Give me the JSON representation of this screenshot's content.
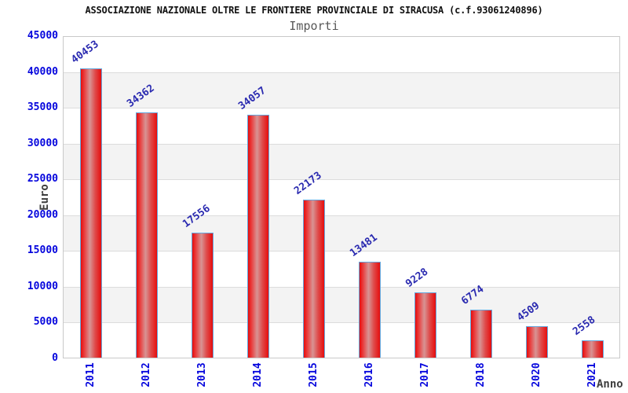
{
  "header": {
    "title": "ASSOCIAZIONE NAZIONALE OLTRE LE FRONTIERE PROVINCIALE DI SIRACUSA (c.f.93061240896)",
    "subtitle": "Importi"
  },
  "chart_data": {
    "type": "bar",
    "title": "ASSOCIAZIONE NAZIONALE OLTRE LE FRONTIERE PROVINCIALE DI SIRACUSA (c.f.93061240896)",
    "subtitle": "Importi",
    "xlabel": "Anno",
    "ylabel": "Euro",
    "categories": [
      "2011",
      "2012",
      "2013",
      "2014",
      "2015",
      "2016",
      "2017",
      "2018",
      "2020",
      "2021"
    ],
    "values": [
      40453,
      34362,
      17556,
      34057,
      22173,
      13481,
      9228,
      6774,
      4509,
      2558
    ],
    "ylim": [
      0,
      45000
    ],
    "ytick_step": 5000,
    "yticks": [
      0,
      5000,
      10000,
      15000,
      20000,
      25000,
      30000,
      35000,
      40000,
      45000
    ],
    "grid": "alternating horizontal bands with light gridlines",
    "legend_position": "none",
    "bar_value_labels_rotation_deg": -36,
    "x_tick_rotation_deg": -90,
    "colors": {
      "bar_fill_edge": "#e60d0d",
      "bar_fill_highlight": "#d89494",
      "bar_border": "#64a7dd",
      "tick_text": "#0505dd",
      "value_text": "#2a2ab0",
      "band_gray": "#f3f3f3",
      "gridline": "#dcdcdc",
      "plot_border": "#c9c9c9",
      "title_text": "#111111",
      "subtitle_text": "#585858",
      "axis_label_text": "#3f3f3f"
    }
  }
}
